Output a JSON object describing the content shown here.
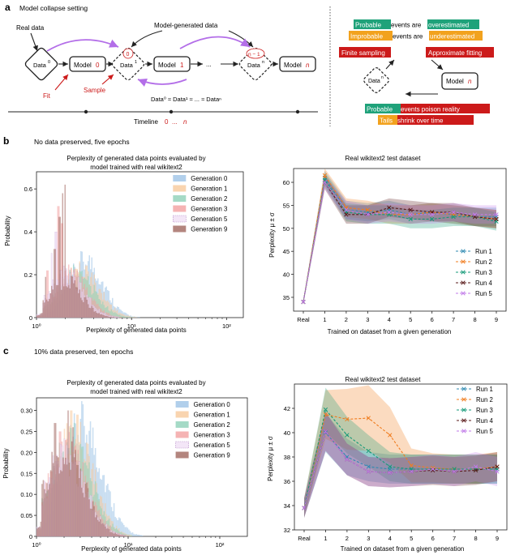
{
  "panel_a": {
    "label": "a",
    "title": "Model collapse setting",
    "real_data": "Real data",
    "model_generated": "Model-generated data",
    "node_labels": {
      "data0": "Data",
      "sup0": "0",
      "data1": "Data",
      "sup1": "1",
      "datan": "Data",
      "supn": "n",
      "model_word": "Model",
      "m0": "0",
      "m1": "1",
      "mn": "n",
      "d1_top": "0",
      "dn_top": "n − 1"
    },
    "ellipsis": "...",
    "fit": "Fit",
    "sample": "Sample",
    "approx_eq_text": "Data⁰ ≈ Data¹ ≈ ... ≈ Dataⁿ",
    "timeline": "Timeline",
    "timeline_range_a": "0",
    "timeline_range_dots": "...",
    "timeline_range_b": "n",
    "right": {
      "probable": "Probable",
      "are_over": " events are ",
      "overestimated": "overestimated",
      "improbable": "Improbable",
      "are_under": " events are ",
      "underestimated": "underestimated",
      "finite_sampling": "Finite sampling",
      "approx_fitting": "Approximate fitting",
      "data_n": "Data",
      "data_n_sup": "n",
      "model_n": "Model",
      "model_n_sup": "n",
      "probable2": "Probable",
      "poison": " events poison reality",
      "tails": "Tails",
      "shrink": " shrink over time"
    }
  },
  "colors": {
    "green": "#1fa27a",
    "orange": "#f2a21e",
    "red": "#cc1a1a",
    "purple": "#b36ee8"
  },
  "panel_b": {
    "label": "b",
    "subtitle": "No data preserved, five epochs",
    "hist_title_1": "Perplexity of generated data points evaluated by",
    "hist_title_2": "model trained with real wikitext2",
    "hist_xlabel": "Perplexity of generated data points",
    "hist_ylabel": "Probability",
    "line_title": "Real wikitext2 test dataset",
    "line_xlabel": "Trained on dataset from a given generation",
    "line_ylabel": "Perplexity μ ± σ"
  },
  "panel_c": {
    "label": "c",
    "subtitle": "10% data preserved, ten epochs",
    "hist_title_1": "Perplexity of generated data points evaluated by",
    "hist_title_2": "model trained with real wikitext2",
    "hist_xlabel": "Perplexity of generated data points",
    "hist_ylabel": "Probability",
    "line_title": "Real wikitext2 test dataset",
    "line_xlabel": "Trained on dataset from a given generation",
    "line_ylabel": "Perplexity μ ± σ"
  },
  "chart_data": [
    {
      "id": "b_hist",
      "type": "bar",
      "title": "Perplexity of generated data points evaluated by model trained with real wikitext2",
      "xlabel": "Perplexity of generated data points",
      "ylabel": "Probability",
      "xscale": "log",
      "xlim": [
        1,
        150
      ],
      "ylim": [
        0,
        0.68
      ],
      "xticks": [
        1,
        10,
        100
      ],
      "xtick_labels": [
        "10⁰",
        "10¹",
        "10²"
      ],
      "yticks": [
        0,
        0.2,
        0.4,
        0.6
      ],
      "ytick_labels": [
        "0",
        "0.2",
        "0.4",
        "0.6"
      ],
      "legend_pos": "top-right",
      "series": [
        {
          "name": "Generation 0",
          "color": "#9dc3e6",
          "peak": 3.3,
          "width": 0.42,
          "height": 0.26,
          "spikes": []
        },
        {
          "name": "Generation 1",
          "color": "#f7c99b",
          "peak": 2.9,
          "width": 0.45,
          "height": 0.22,
          "spikes": []
        },
        {
          "name": "Generation 2",
          "color": "#8fd1b8",
          "peak": 2.6,
          "width": 0.45,
          "height": 0.2,
          "spikes": []
        },
        {
          "name": "Generation 3",
          "color": "#f2a0a0",
          "peak": 2.3,
          "width": 0.42,
          "height": 0.2,
          "spikes": [
            [
              1.7,
              0.52
            ],
            [
              1.85,
              0.44
            ],
            [
              1.3,
              0.22
            ]
          ]
        },
        {
          "name": "Generation 5",
          "color": "#f0e0f5",
          "peak": 2.1,
          "width": 0.42,
          "height": 0.2,
          "spikes": [
            [
              1.6,
              0.4
            ],
            [
              1.45,
              0.3
            ]
          ]
        },
        {
          "name": "Generation 9",
          "color": "#a0665e",
          "peak": 2.0,
          "width": 0.4,
          "height": 0.17,
          "spikes": [
            [
              2.0,
              0.62
            ],
            [
              1.9,
              0.58
            ],
            [
              1.75,
              0.47
            ],
            [
              1.55,
              0.32
            ],
            [
              1.25,
              0.19
            ]
          ]
        }
      ],
      "legend": [
        "Generation 0",
        "Generation 1",
        "Generation 2",
        "Generation 3",
        "Generation 5",
        "Generation 9"
      ]
    },
    {
      "id": "b_line",
      "type": "line",
      "title": "Real wikitext2 test dataset",
      "xlabel": "Trained on dataset from a given generation",
      "ylabel": "Perplexity μ ± σ",
      "categories": [
        "Real",
        "1",
        "2",
        "3",
        "4",
        "5",
        "6",
        "7",
        "8",
        "9"
      ],
      "ylim": [
        32,
        63
      ],
      "yticks": [
        35,
        40,
        45,
        50,
        55,
        60
      ],
      "legend_pos": "bottom-right",
      "series": [
        {
          "name": "Run 1",
          "color": "#2f8ab2",
          "values": [
            34,
            61,
            54,
            53.5,
            54,
            53,
            53.5,
            53,
            52.5,
            52.5
          ],
          "std": [
            0.5,
            1.5,
            2,
            2,
            2,
            2,
            2,
            2,
            2,
            2
          ]
        },
        {
          "name": "Run 2",
          "color": "#f07c1e",
          "values": [
            34,
            61.5,
            54.5,
            54,
            53,
            53,
            53.5,
            53,
            52.5,
            52
          ],
          "std": [
            0.5,
            1.5,
            2,
            2,
            2,
            2,
            2,
            2,
            2,
            2
          ]
        },
        {
          "name": "Run 3",
          "color": "#159a78",
          "values": [
            34,
            60.5,
            53.5,
            53,
            53,
            52,
            52,
            52.5,
            52.5,
            51.5
          ],
          "std": [
            0.5,
            1.5,
            2,
            2,
            2,
            2,
            2,
            2,
            2,
            2
          ]
        },
        {
          "name": "Run 4",
          "color": "#5a1a1a",
          "values": [
            34,
            60,
            53,
            53,
            54.5,
            54,
            53.5,
            53.5,
            52.5,
            52
          ],
          "std": [
            0.5,
            1.5,
            2,
            2,
            2,
            2,
            2,
            2,
            2,
            2
          ]
        },
        {
          "name": "Run 5",
          "color": "#c07ae8",
          "values": [
            34,
            60,
            54,
            53,
            53.5,
            53,
            53,
            53.5,
            53,
            53
          ],
          "std": [
            0.5,
            1.5,
            2,
            2,
            2,
            2,
            2,
            2,
            2,
            2
          ]
        }
      ]
    },
    {
      "id": "c_hist",
      "type": "bar",
      "title": "Perplexity of generated data points evaluated by model trained with real wikitext2",
      "xlabel": "Perplexity of generated data points",
      "ylabel": "Probability",
      "xscale": "log",
      "xlim": [
        1,
        200
      ],
      "ylim": [
        0,
        0.33
      ],
      "xticks": [
        1,
        10,
        100
      ],
      "xtick_labels": [
        "10⁰",
        "10¹",
        "10²"
      ],
      "yticks": [
        0,
        0.05,
        0.1,
        0.15,
        0.2,
        0.25,
        0.3
      ],
      "ytick_labels": [
        "0",
        "0.05",
        "0.10",
        "0.15",
        "0.20",
        "0.25",
        "0.30"
      ],
      "legend_pos": "top-right",
      "series": [
        {
          "name": "Generation 0",
          "color": "#9dc3e6",
          "peak": 3.2,
          "width": 0.48,
          "height": 0.26,
          "spikes": [
            [
              3.0,
              0.28
            ]
          ]
        },
        {
          "name": "Generation 1",
          "color": "#f7c99b",
          "peak": 2.6,
          "width": 0.48,
          "height": 0.24,
          "spikes": [
            [
              2.4,
              0.3
            ],
            [
              2.8,
              0.29
            ]
          ]
        },
        {
          "name": "Generation 2",
          "color": "#8fd1b8",
          "peak": 2.4,
          "width": 0.5,
          "height": 0.22,
          "spikes": []
        },
        {
          "name": "Generation 3",
          "color": "#f2a0a0",
          "peak": 2.2,
          "width": 0.5,
          "height": 0.2,
          "spikes": [
            [
              1.8,
              0.25
            ]
          ]
        },
        {
          "name": "Generation 5",
          "color": "#f0e0f5",
          "peak": 2.1,
          "width": 0.5,
          "height": 0.19,
          "spikes": []
        },
        {
          "name": "Generation 9",
          "color": "#a0665e",
          "peak": 2.0,
          "width": 0.5,
          "height": 0.2,
          "spikes": [
            [
              1.6,
              0.27
            ],
            [
              2.2,
              0.3
            ],
            [
              2.5,
              0.26
            ]
          ]
        }
      ],
      "legend": [
        "Generation 0",
        "Generation 1",
        "Generation 2",
        "Generation 3",
        "Generation 5",
        "Generation 9"
      ]
    },
    {
      "id": "c_line",
      "type": "line",
      "title": "Real wikitext2 test dataset",
      "xlabel": "Trained on dataset from a given generation",
      "ylabel": "Perplexity μ ± σ",
      "categories": [
        "Real",
        "1",
        "2",
        "3",
        "4",
        "5",
        "6",
        "7",
        "8",
        "9"
      ],
      "ylim": [
        32,
        44
      ],
      "yticks": [
        32,
        34,
        36,
        38,
        40,
        42
      ],
      "legend_pos": "top-right",
      "series": [
        {
          "name": "Run 1",
          "color": "#2f8ab2",
          "values": [
            33.8,
            40,
            38,
            37.2,
            37,
            37,
            37,
            37,
            37,
            37
          ],
          "std": [
            0.8,
            1.6,
            1.5,
            1.2,
            1.2,
            1.2,
            1.2,
            1.2,
            1.2,
            1.2
          ]
        },
        {
          "name": "Run 2",
          "color": "#f07c1e",
          "values": [
            33.8,
            41.5,
            41.1,
            41.2,
            39.8,
            37.3,
            37.1,
            37,
            37,
            37.2
          ],
          "std": [
            0.8,
            2.0,
            2.5,
            2.7,
            2.3,
            1.4,
            1.2,
            1.2,
            1.2,
            1.2
          ]
        },
        {
          "name": "Run 3",
          "color": "#159a78",
          "values": [
            33.8,
            41.9,
            39.8,
            38.5,
            37.2,
            37,
            37,
            37,
            37,
            37
          ],
          "std": [
            0.8,
            1.8,
            1.5,
            1.3,
            1.2,
            1.2,
            1.2,
            1.2,
            1.2,
            1.2
          ]
        },
        {
          "name": "Run 4",
          "color": "#5a1a1a",
          "values": [
            33.8,
            40.1,
            37.8,
            36.8,
            36.7,
            36.8,
            36.9,
            36.8,
            36.9,
            37.2
          ],
          "std": [
            0.8,
            1.6,
            1.3,
            1.2,
            1.2,
            1.2,
            1.2,
            1.2,
            1.2,
            1.2
          ]
        },
        {
          "name": "Run 5",
          "color": "#c07ae8",
          "values": [
            33.8,
            40.1,
            37.8,
            36.8,
            36.7,
            36.8,
            37,
            36.8,
            37.2,
            36.8
          ],
          "std": [
            0.8,
            1.6,
            1.3,
            1.2,
            1.2,
            1.2,
            1.2,
            1.2,
            1.2,
            1.2
          ]
        }
      ]
    }
  ]
}
